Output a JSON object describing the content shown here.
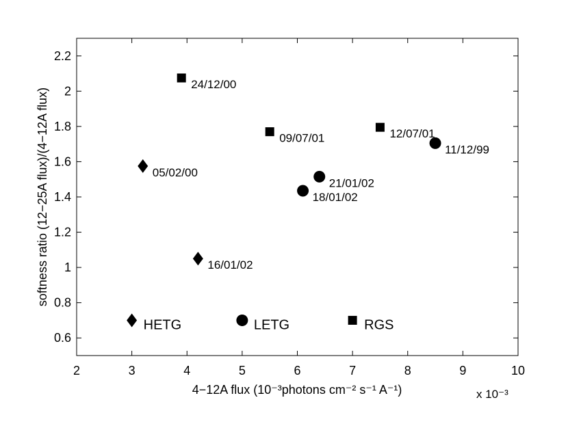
{
  "chart_data": {
    "type": "scatter",
    "xlabel": "4−12A flux (10⁻³photons cm⁻² s⁻¹ A⁻¹)",
    "ylabel": "softness ratio (12−25A flux)/(4−12A flux)",
    "x_scale_label": "x 10⁻³",
    "xlim": [
      2,
      10
    ],
    "ylim": [
      0.5,
      2.3
    ],
    "xticks": [
      "2",
      "3",
      "4",
      "5",
      "6",
      "7",
      "8",
      "9",
      "10"
    ],
    "xtick_values": [
      2,
      3,
      4,
      5,
      6,
      7,
      8,
      9,
      10
    ],
    "yticks": [
      "0.6",
      "0.8",
      "1",
      "1.2",
      "1.4",
      "1.6",
      "1.8",
      "2",
      "2.2"
    ],
    "ytick_values": [
      0.6,
      0.8,
      1.0,
      1.2,
      1.4,
      1.6,
      1.8,
      2.0,
      2.2
    ],
    "grid": false,
    "series": [
      {
        "name": "HETG",
        "marker": "diamond",
        "points": [
          {
            "x": 3.2,
            "y": 1.575,
            "label": "05/02/00"
          },
          {
            "x": 4.2,
            "y": 1.05,
            "label": "16/01/02"
          }
        ]
      },
      {
        "name": "LETG",
        "marker": "circle",
        "points": [
          {
            "x": 6.1,
            "y": 1.435,
            "label": "18/01/02"
          },
          {
            "x": 6.4,
            "y": 1.515,
            "label": "21/01/02"
          },
          {
            "x": 8.5,
            "y": 1.705,
            "label": "11/12/99"
          }
        ]
      },
      {
        "name": "RGS",
        "marker": "square",
        "points": [
          {
            "x": 3.9,
            "y": 2.075,
            "label": "24/12/00"
          },
          {
            "x": 5.5,
            "y": 1.77,
            "label": "09/07/01"
          },
          {
            "x": 7.5,
            "y": 1.795,
            "label": "12/07/01"
          }
        ]
      }
    ],
    "legend": {
      "placement": "bottom-inside",
      "entries": [
        {
          "name": "HETG",
          "marker": "diamond",
          "x": 3.0,
          "y": 0.7
        },
        {
          "name": "LETG",
          "marker": "circle",
          "x": 5.0,
          "y": 0.7
        },
        {
          "name": "RGS",
          "marker": "square",
          "x": 7.0,
          "y": 0.7
        }
      ]
    }
  }
}
